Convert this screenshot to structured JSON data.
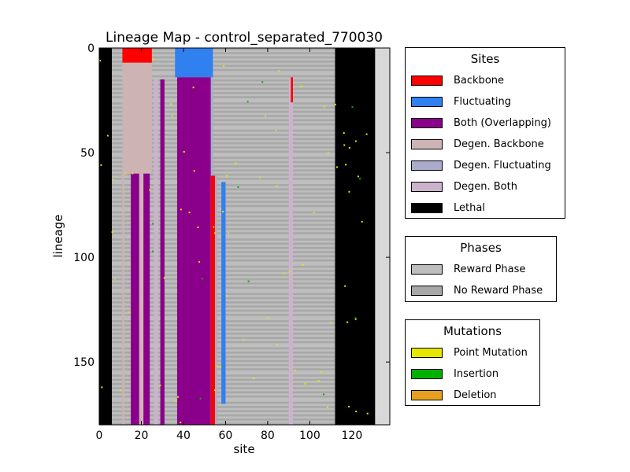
{
  "chart_data": {
    "type": "heatmap",
    "title": "Lineage Map - control_separated_770030",
    "xlabel": "site",
    "ylabel": "lineage",
    "xlim": [
      0,
      138
    ],
    "ylim": [
      180,
      0
    ],
    "x_ticks": [
      "0",
      "20",
      "40",
      "60",
      "80",
      "100",
      "120"
    ],
    "y_ticks": [
      "0",
      "50",
      "100",
      "150"
    ],
    "x_tick_values": [
      0,
      20,
      40,
      60,
      80,
      100,
      120
    ],
    "y_tick_values": [
      0,
      50,
      100,
      150
    ],
    "genome_length": 131,
    "lineage_count": 180,
    "regions": [
      {
        "category": "Lethal",
        "x": [
          0,
          6
        ],
        "y": [
          0,
          180
        ]
      },
      {
        "category": "Degen. Backbone",
        "x": [
          11,
          25
        ],
        "y": [
          7,
          60
        ]
      },
      {
        "category": "Backbone",
        "x": [
          11,
          25
        ],
        "y": [
          0,
          7
        ]
      },
      {
        "category": "Degen. Backbone",
        "x": [
          11,
          12
        ],
        "y": [
          60,
          180
        ]
      },
      {
        "category": "Both (Overlapping)",
        "x": [
          15,
          19
        ],
        "y": [
          60,
          180
        ]
      },
      {
        "category": "Degen. Backbone",
        "x": [
          19,
          21
        ],
        "y": [
          60,
          180
        ]
      },
      {
        "category": "Both (Overlapping)",
        "x": [
          21,
          24
        ],
        "y": [
          60,
          180
        ]
      },
      {
        "category": "Degen. Both",
        "x": [
          26,
          28
        ],
        "y": [
          15,
          180
        ]
      },
      {
        "category": "Both (Overlapping)",
        "x": [
          29,
          31
        ],
        "y": [
          15,
          180
        ]
      },
      {
        "category": "Fluctuating",
        "x": [
          36,
          54
        ],
        "y": [
          0,
          14
        ]
      },
      {
        "category": "Both (Overlapping)",
        "x": [
          37,
          53
        ],
        "y": [
          14,
          180
        ]
      },
      {
        "category": "Degen. Fluctuating",
        "x": [
          53,
          54
        ],
        "y": [
          14,
          180
        ]
      },
      {
        "category": "Backbone",
        "x": [
          53,
          55
        ],
        "y": [
          61,
          180
        ]
      },
      {
        "category": "Degen. Fluctuating",
        "x": [
          55,
          56
        ],
        "y": [
          61,
          180
        ]
      },
      {
        "category": "Fluctuating",
        "x": [
          58,
          60
        ],
        "y": [
          64,
          170
        ]
      },
      {
        "category": "Degen. Both",
        "x": [
          90,
          92
        ],
        "y": [
          14,
          180
        ]
      },
      {
        "category": "Backbone",
        "x": [
          91,
          92
        ],
        "y": [
          14,
          26
        ]
      },
      {
        "category": "Lethal",
        "x": [
          112,
          131
        ],
        "y": [
          0,
          180
        ]
      }
    ],
    "legends": {
      "sites": {
        "title": "Sites",
        "entries": [
          {
            "label": "Backbone",
            "color": "#ff0000"
          },
          {
            "label": "Fluctuating",
            "color": "#3080f0"
          },
          {
            "label": "Both (Overlapping)",
            "color": "#8b008b"
          },
          {
            "label": "Degen. Backbone",
            "color": "#cdb3b3"
          },
          {
            "label": "Degen. Fluctuating",
            "color": "#aaaacc"
          },
          {
            "label": "Degen. Both",
            "color": "#ccb3cc"
          },
          {
            "label": "Lethal",
            "color": "#000000"
          }
        ]
      },
      "phases": {
        "title": "Phases",
        "entries": [
          {
            "label": "Reward Phase",
            "color": "#bebebe"
          },
          {
            "label": "No Reward Phase",
            "color": "#a8a8a8"
          }
        ]
      },
      "mutations": {
        "title": "Mutations",
        "entries": [
          {
            "label": "Point Mutation",
            "color": "#e6e600"
          },
          {
            "label": "Insertion",
            "color": "#00b000"
          },
          {
            "label": "Deletion",
            "color": "#e6a020"
          }
        ]
      }
    }
  }
}
